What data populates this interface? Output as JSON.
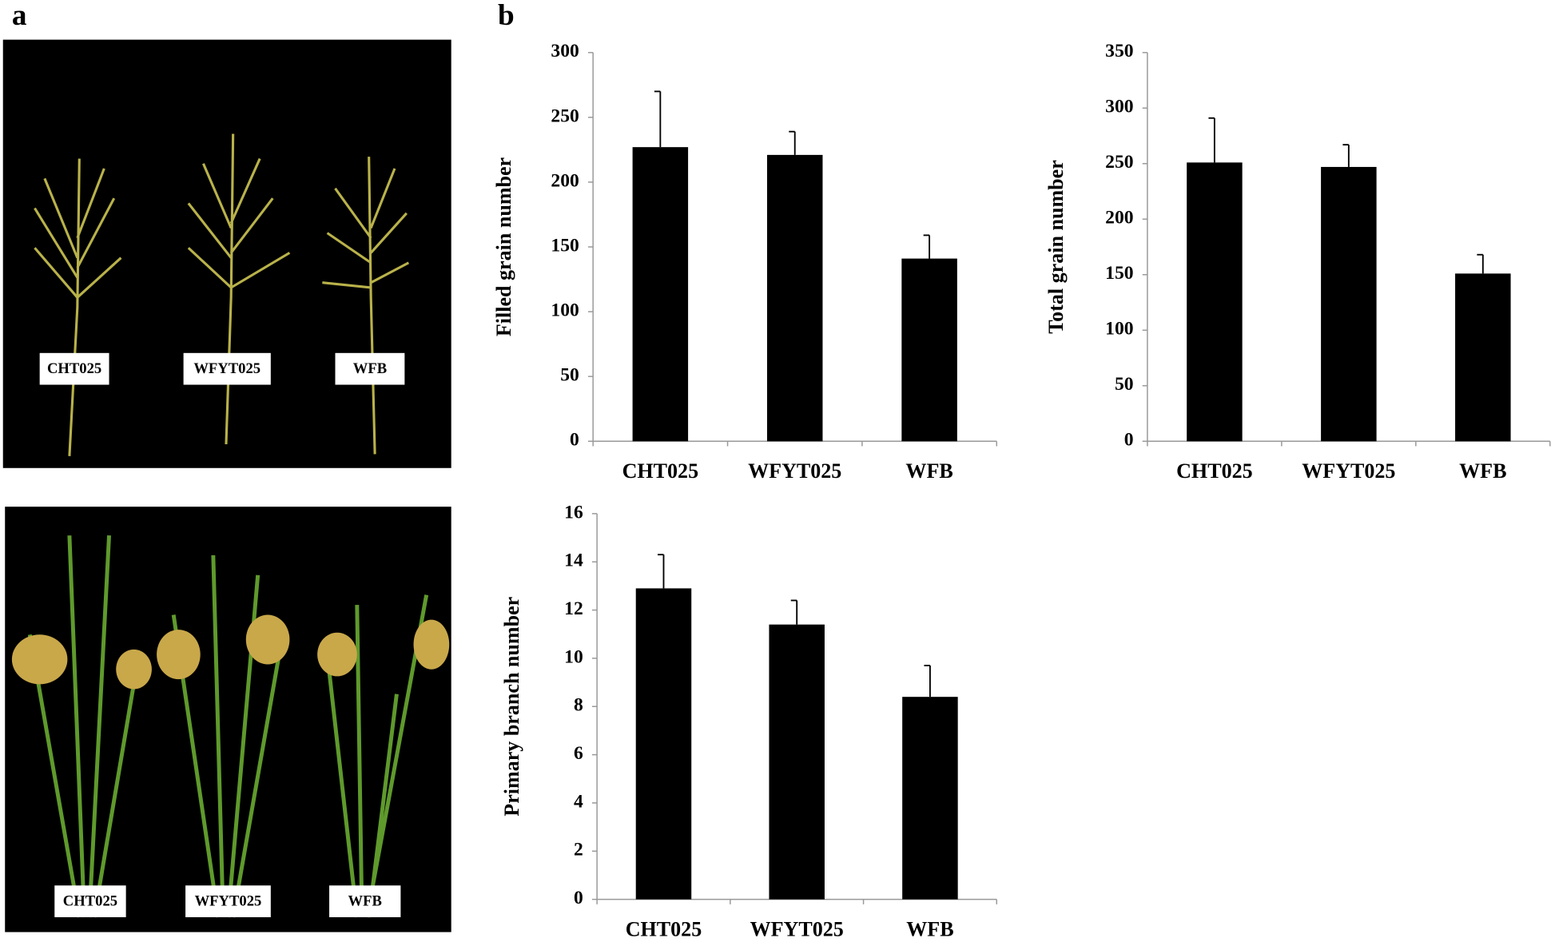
{
  "panel_labels": [
    "a",
    "b"
  ],
  "photos": [
    {
      "labels": [
        "CHT025",
        "WFYT025",
        "WFB"
      ]
    },
    {
      "labels": [
        "CHT025",
        "WFYT025",
        "WFB"
      ]
    }
  ],
  "chart_data": [
    {
      "type": "bar",
      "y_label": "Filled grain number",
      "categories": [
        "CHT025",
        "WFYT025",
        "WFB"
      ],
      "values": [
        227,
        221,
        141
      ],
      "errors": [
        43,
        18,
        18
      ],
      "color": "#000000",
      "ylim": [
        0,
        300
      ],
      "yticks": [
        0,
        50,
        100,
        150,
        200,
        250,
        300
      ],
      "grid": false
    },
    {
      "type": "bar",
      "y_label": "Total grain number",
      "categories": [
        "CHT025",
        "WFYT025",
        "WFB"
      ],
      "values": [
        251,
        247,
        151
      ],
      "errors": [
        40,
        20,
        17
      ],
      "color": "#000000",
      "ylim": [
        0,
        350
      ],
      "yticks": [
        0,
        50,
        100,
        150,
        200,
        250,
        300,
        350
      ],
      "grid": false
    },
    {
      "type": "bar",
      "y_label": "Primary branch number",
      "categories": [
        "CHT025",
        "WFYT025",
        "WFB"
      ],
      "values": [
        12.9,
        11.4,
        8.4
      ],
      "errors": [
        1.4,
        1.0,
        1.3
      ],
      "color": "#000000",
      "ylim": [
        0,
        16
      ],
      "yticks": [
        0,
        2,
        4,
        6,
        8,
        10,
        12,
        14,
        16
      ],
      "grid": false
    }
  ]
}
